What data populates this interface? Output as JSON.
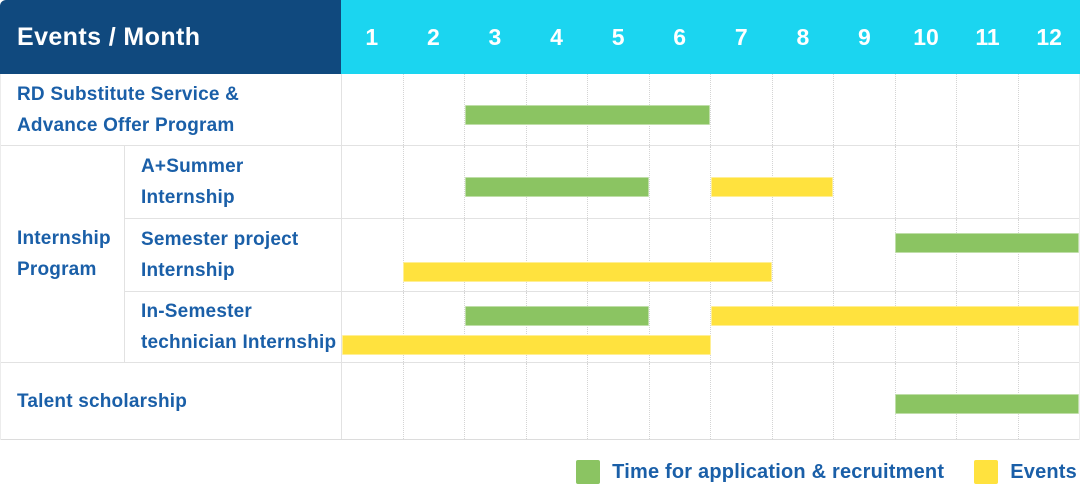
{
  "header": {
    "label": "Events / Month",
    "months": [
      "1",
      "2",
      "3",
      "4",
      "5",
      "6",
      "7",
      "8",
      "9",
      "10",
      "11",
      "12"
    ]
  },
  "colors": {
    "navy": "#10497E",
    "cyan": "#1BD5F0",
    "green": "#8BC462",
    "yellow": "#FFE23E",
    "label_blue": "#1A5FA8"
  },
  "legend": {
    "items": [
      {
        "swatch": "green",
        "label": "Time for application & recruitment"
      },
      {
        "swatch": "yellow",
        "label": "Events"
      }
    ]
  },
  "chart_data": {
    "type": "bar",
    "subtype": "gantt-schedule",
    "title": "Events / Month",
    "x": {
      "label": "Month",
      "ticks": [
        1,
        2,
        3,
        4,
        5,
        6,
        7,
        8,
        9,
        10,
        11,
        12
      ],
      "range": [
        1,
        12
      ]
    },
    "grid": "dotted-vertical-month-separators",
    "legend_position": "bottom-right",
    "series_names": [
      "Time for application & recruitment",
      "Events"
    ],
    "group_label": "Internship Program",
    "group_label_lines": [
      "Internship",
      "Program"
    ],
    "rows": [
      {
        "label": "RD Substitute Service & Advance Offer Program",
        "label_lines": [
          "RD Substitute Service &",
          "Advance Offer Program"
        ],
        "group": null,
        "bars": [
          {
            "series": "Time for application & recruitment",
            "color": "green",
            "start_month": 3,
            "end_month": 6,
            "lane": "single"
          }
        ]
      },
      {
        "label": "A+Summer Internship",
        "label_lines": [
          "A+Summer",
          "Internship"
        ],
        "group": "Internship Program",
        "bars": [
          {
            "series": "Time for application & recruitment",
            "color": "green",
            "start_month": 3,
            "end_month": 5,
            "lane": "single"
          },
          {
            "series": "Events",
            "color": "yellow",
            "start_month": 7,
            "end_month": 8,
            "lane": "single"
          }
        ]
      },
      {
        "label": "Semester project Internship",
        "label_lines": [
          "Semester project",
          "Internship"
        ],
        "group": "Internship Program",
        "bars": [
          {
            "series": "Time for application & recruitment",
            "color": "green",
            "start_month": 10,
            "end_month": 12,
            "lane": "upper"
          },
          {
            "series": "Events",
            "color": "yellow",
            "start_month": 2,
            "end_month": 7,
            "lane": "lower"
          }
        ]
      },
      {
        "label": "In-Semester technician Internship",
        "label_lines": [
          "In-Semester",
          "technician Internship"
        ],
        "group": "Internship Program",
        "bars": [
          {
            "series": "Time for application & recruitment",
            "color": "green",
            "start_month": 3,
            "end_month": 5,
            "lane": "upper"
          },
          {
            "series": "Events",
            "color": "yellow",
            "start_month": 7,
            "end_month": 12,
            "lane": "upper"
          },
          {
            "series": "Events",
            "color": "yellow",
            "start_month": 1,
            "end_month": 6,
            "lane": "lower"
          }
        ]
      },
      {
        "label": "Talent scholarship",
        "label_lines": [
          "Talent scholarship"
        ],
        "group": null,
        "bars": [
          {
            "series": "Time for application & recruitment",
            "color": "green",
            "start_month": 10,
            "end_month": 12,
            "lane": "single"
          }
        ]
      }
    ]
  }
}
